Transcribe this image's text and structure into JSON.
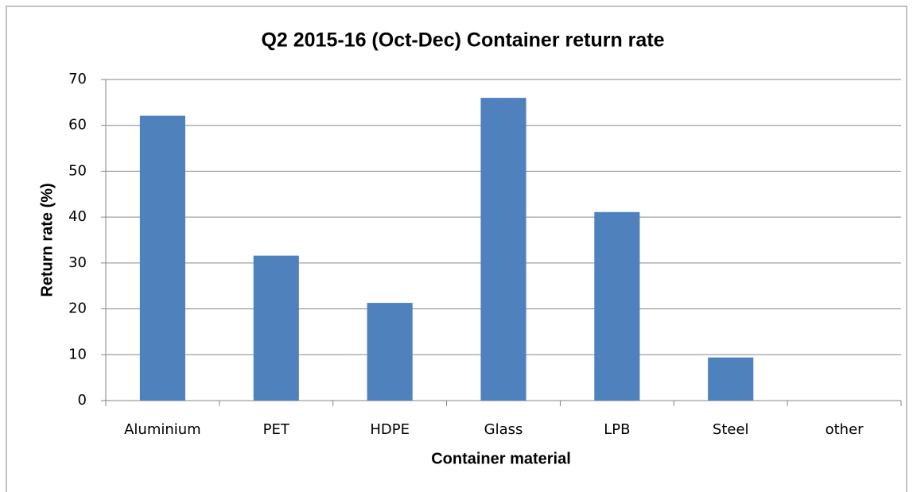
{
  "chart_data": {
    "type": "bar",
    "title": "Q2 2015-16 (Oct-Dec) Container return rate",
    "x_label": "Container material",
    "y_label": "Return rate (%)",
    "categories": [
      "Aluminium",
      "PET",
      "HDPE",
      "Glass",
      "LPB",
      "Steel",
      "other"
    ],
    "values": [
      62.1,
      31.6,
      21.3,
      66,
      41.1,
      9.4,
      0
    ],
    "color": "#4f81bd",
    "ylim": [
      0,
      70
    ],
    "yticks": [
      0,
      10,
      20,
      30,
      40,
      50,
      60,
      70
    ],
    "grid": true
  }
}
